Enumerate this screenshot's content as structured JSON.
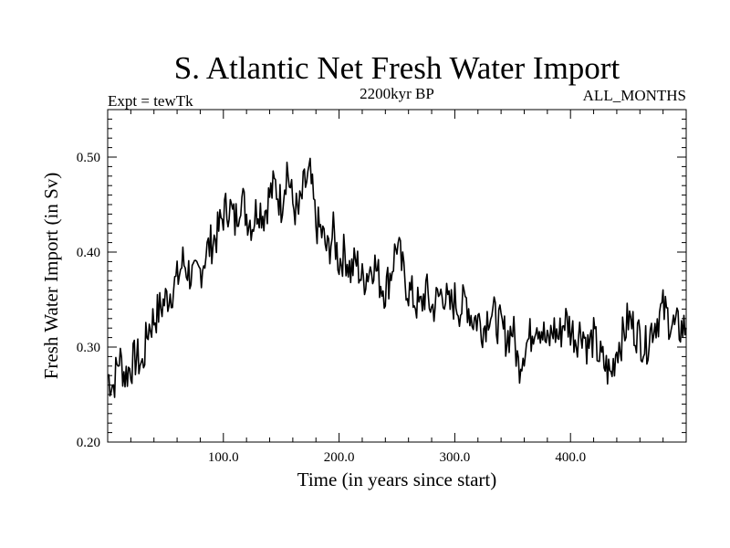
{
  "chart_data": {
    "type": "line",
    "title": "S. Atlantic Net Fresh Water Import",
    "subtitle_left": "Expt = tewTk",
    "subtitle_center": "2200kyr BP",
    "subtitle_right": "ALL_MONTHS",
    "xlabel": "Time (in years since start)",
    "ylabel": "Fresh Water Import (in Sv)",
    "xlim": [
      0,
      500
    ],
    "ylim": [
      0.2,
      0.55
    ],
    "x_ticks": [
      100,
      200,
      300,
      400
    ],
    "x_tick_labels": [
      "100.0",
      "200.0",
      "300.0",
      "400.0"
    ],
    "y_ticks": [
      0.2,
      0.3,
      0.4,
      0.5
    ],
    "y_tick_labels": [
      "0.20",
      "0.30",
      "0.40",
      "0.50"
    ],
    "grid": false,
    "series": [
      {
        "name": "Fresh Water Import",
        "x": [
          0,
          5,
          10,
          15,
          20,
          25,
          30,
          35,
          40,
          45,
          50,
          55,
          60,
          65,
          70,
          75,
          80,
          85,
          90,
          95,
          100,
          105,
          110,
          115,
          120,
          125,
          130,
          135,
          140,
          145,
          150,
          155,
          160,
          165,
          170,
          175,
          180,
          185,
          190,
          195,
          200,
          205,
          210,
          215,
          220,
          225,
          230,
          235,
          240,
          245,
          250,
          255,
          260,
          265,
          270,
          275,
          280,
          285,
          290,
          295,
          300,
          305,
          310,
          315,
          320,
          325,
          330,
          335,
          340,
          345,
          350,
          355,
          360,
          365,
          370,
          375,
          380,
          385,
          390,
          395,
          400,
          405,
          410,
          415,
          420,
          425,
          430,
          435,
          440,
          445,
          450,
          455,
          460,
          465,
          470,
          475,
          480,
          485,
          490,
          495,
          500
        ],
        "y": [
          0.27,
          0.26,
          0.29,
          0.27,
          0.28,
          0.29,
          0.28,
          0.32,
          0.33,
          0.34,
          0.35,
          0.36,
          0.37,
          0.39,
          0.38,
          0.37,
          0.38,
          0.4,
          0.41,
          0.42,
          0.44,
          0.45,
          0.43,
          0.46,
          0.44,
          0.43,
          0.45,
          0.44,
          0.46,
          0.47,
          0.45,
          0.49,
          0.45,
          0.44,
          0.47,
          0.48,
          0.43,
          0.42,
          0.4,
          0.42,
          0.39,
          0.4,
          0.38,
          0.39,
          0.37,
          0.38,
          0.39,
          0.37,
          0.36,
          0.38,
          0.41,
          0.38,
          0.36,
          0.35,
          0.34,
          0.36,
          0.34,
          0.35,
          0.36,
          0.34,
          0.35,
          0.34,
          0.35,
          0.33,
          0.33,
          0.32,
          0.34,
          0.33,
          0.32,
          0.31,
          0.32,
          0.28,
          0.3,
          0.31,
          0.33,
          0.32,
          0.3,
          0.32,
          0.31,
          0.33,
          0.32,
          0.31,
          0.32,
          0.3,
          0.31,
          0.29,
          0.28,
          0.27,
          0.3,
          0.31,
          0.33,
          0.32,
          0.31,
          0.3,
          0.32,
          0.33,
          0.34,
          0.33,
          0.32,
          0.32,
          0.32
        ]
      }
    ]
  }
}
